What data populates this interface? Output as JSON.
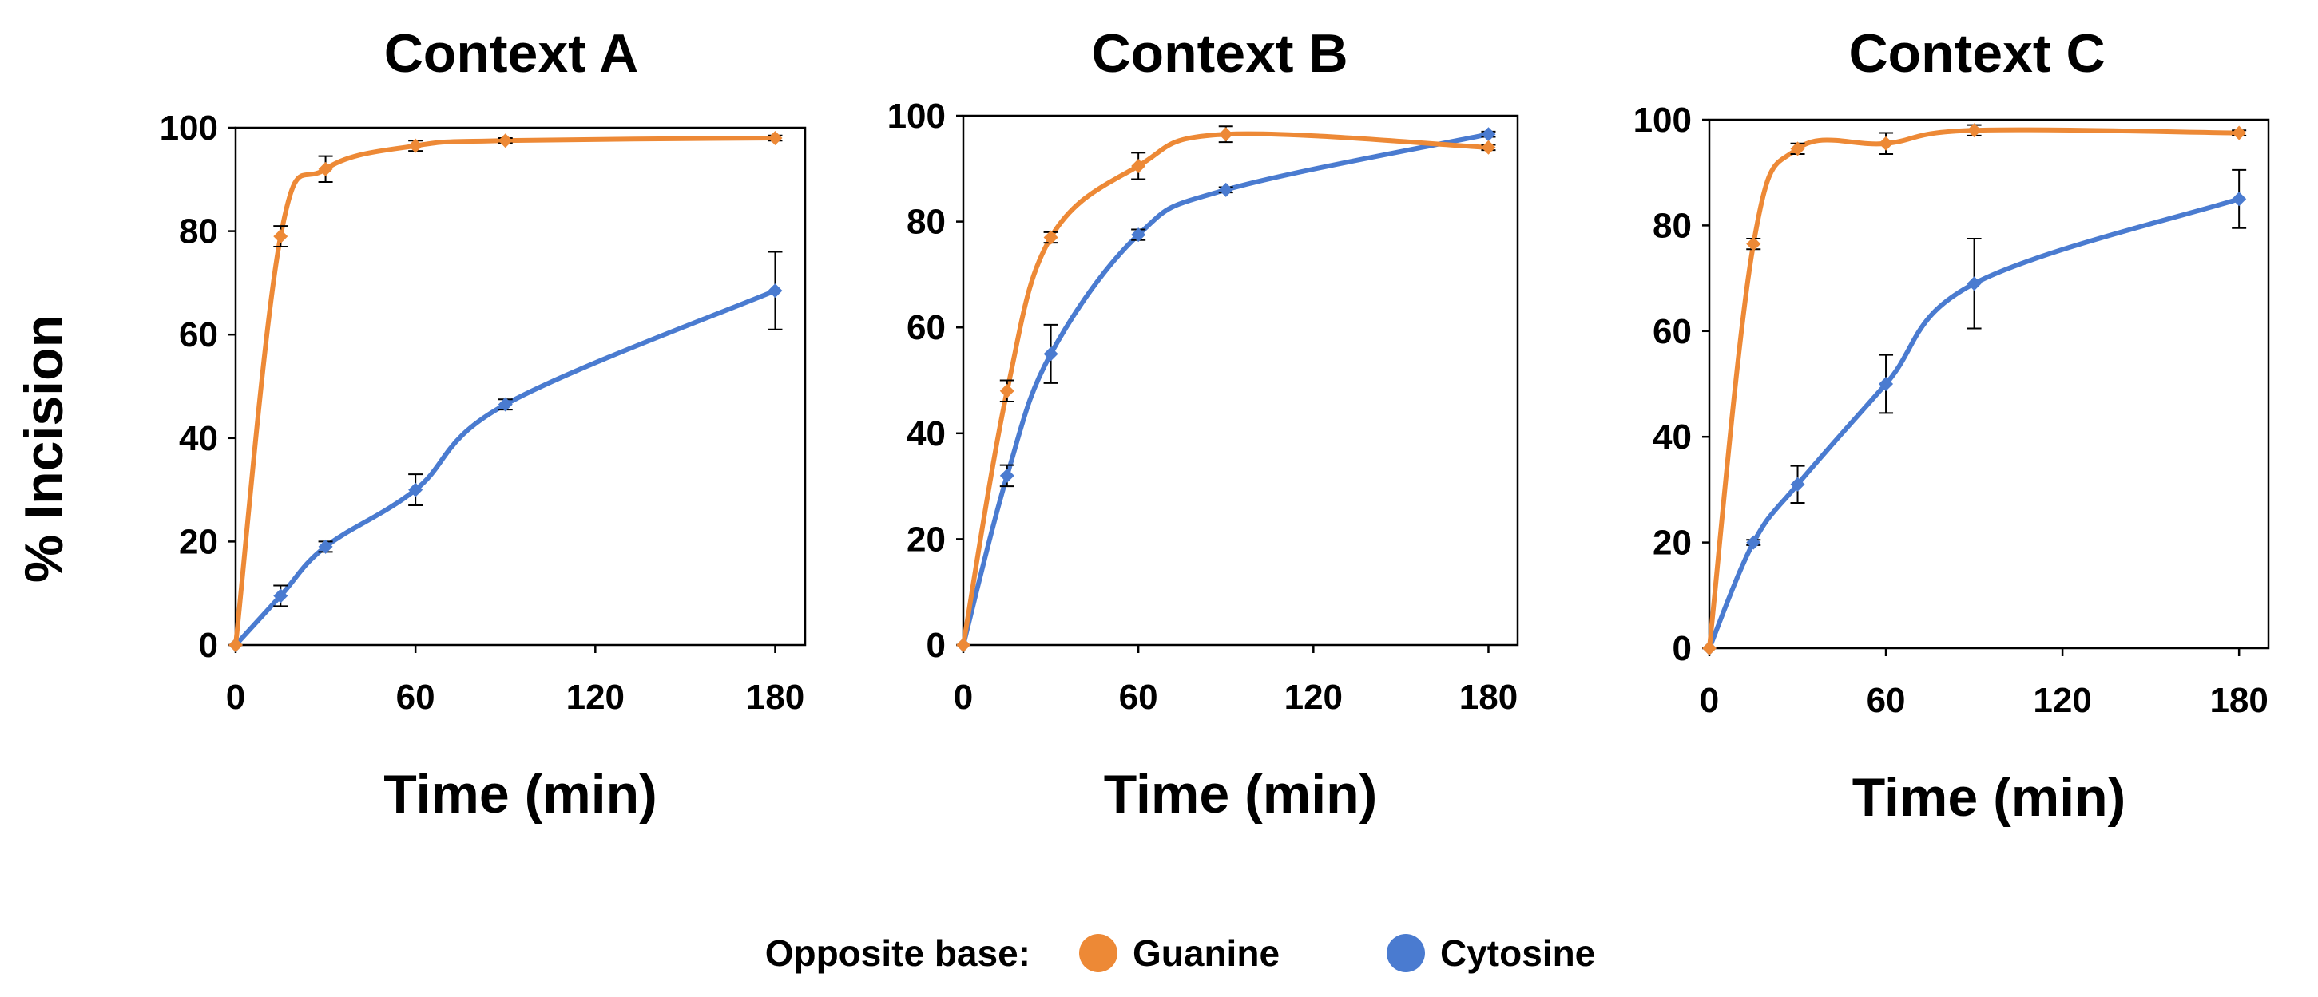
{
  "ylabel": "% Incision",
  "legend": {
    "title": "Opposite base:",
    "entries": [
      {
        "name": "Guanine",
        "color": "#ED8936"
      },
      {
        "name": "Cytosine",
        "color": "#4A7BD0"
      }
    ]
  },
  "chart_data": [
    {
      "type": "line",
      "title": "Context A",
      "xlabel": "Time (min)",
      "ylabel": "% Incision",
      "xlim": [
        0,
        190
      ],
      "ylim": [
        0,
        100
      ],
      "xticks": [
        0,
        60,
        120,
        180
      ],
      "yticks": [
        0,
        20,
        40,
        60,
        80,
        100
      ],
      "x": [
        0,
        15,
        30,
        60,
        90,
        180
      ],
      "series": [
        {
          "name": "Guanine",
          "color": "#ED8936",
          "values": [
            0,
            79,
            92,
            96.5,
            97.5,
            98
          ],
          "errors": [
            0,
            2,
            2.5,
            1,
            0.5,
            0.5
          ]
        },
        {
          "name": "Cytosine",
          "color": "#4A7BD0",
          "values": [
            0,
            9.5,
            19,
            30,
            46.5,
            68.5
          ],
          "errors": [
            0,
            2,
            1,
            3,
            1,
            7.5
          ]
        }
      ]
    },
    {
      "type": "line",
      "title": "Context B",
      "xlabel": "Time (min)",
      "ylabel": "% Incision",
      "xlim": [
        0,
        190
      ],
      "ylim": [
        0,
        100
      ],
      "xticks": [
        0,
        60,
        120,
        180
      ],
      "yticks": [
        0,
        20,
        40,
        60,
        80,
        100
      ],
      "x": [
        0,
        15,
        30,
        60,
        90,
        180
      ],
      "series": [
        {
          "name": "Guanine",
          "color": "#ED8936",
          "values": [
            0,
            48,
            77,
            90.5,
            96.5,
            94
          ],
          "errors": [
            0,
            2,
            1,
            2.5,
            1.5,
            0.5
          ]
        },
        {
          "name": "Cytosine",
          "color": "#4A7BD0",
          "values": [
            0,
            32,
            55,
            77.5,
            86,
            96.5
          ],
          "errors": [
            0,
            2,
            5.5,
            1,
            0.5,
            0.5
          ]
        }
      ]
    },
    {
      "type": "line",
      "title": "Context C",
      "xlabel": "Time (min)",
      "ylabel": "% Incision",
      "xlim": [
        0,
        190
      ],
      "ylim": [
        0,
        100
      ],
      "xticks": [
        0,
        60,
        120,
        180
      ],
      "yticks": [
        0,
        20,
        40,
        60,
        80,
        100
      ],
      "x": [
        0,
        15,
        30,
        60,
        90,
        180
      ],
      "series": [
        {
          "name": "Guanine",
          "color": "#ED8936",
          "values": [
            0,
            76.5,
            94.5,
            95.5,
            98,
            97.5
          ],
          "errors": [
            0,
            1,
            1,
            2,
            1,
            0.5
          ]
        },
        {
          "name": "Cytosine",
          "color": "#4A7BD0",
          "values": [
            0,
            20,
            31,
            50,
            69,
            85
          ],
          "errors": [
            0,
            0.5,
            3.5,
            5.5,
            8.5,
            5.5
          ]
        }
      ]
    }
  ]
}
